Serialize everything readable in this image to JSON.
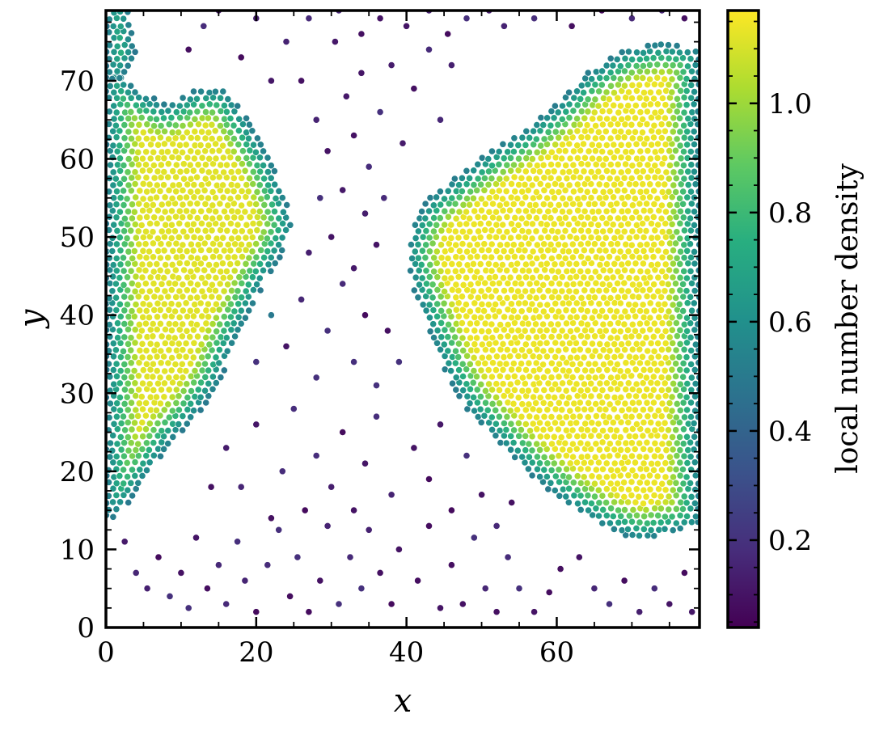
{
  "chart_data": {
    "type": "scatter",
    "title": "",
    "xlabel": "x",
    "ylabel": "y",
    "xlim": [
      0,
      79
    ],
    "ylim": [
      0,
      79
    ],
    "x_ticks": [
      0,
      20,
      40,
      60
    ],
    "x_tick_labels": [
      "0",
      "20",
      "40",
      "60"
    ],
    "y_ticks": [
      0,
      10,
      20,
      30,
      40,
      50,
      60,
      70
    ],
    "y_tick_labels": [
      "0",
      "10",
      "20",
      "30",
      "40",
      "50",
      "60",
      "70"
    ],
    "grid": false,
    "colormap": "viridis",
    "colorbar": {
      "label": "local number density",
      "range": [
        0.04,
        1.17
      ],
      "ticks": [
        0.2,
        0.4,
        0.6,
        0.8,
        1.0
      ],
      "tick_labels": [
        "0.2",
        "0.4",
        "0.6",
        "0.8",
        "1.0"
      ]
    },
    "regions": [
      {
        "name": "left dense cluster",
        "density": 1.12,
        "boundary": [
          [
            0,
            73
          ],
          [
            4,
            69
          ],
          [
            8,
            67
          ],
          [
            12,
            69
          ],
          [
            16,
            69
          ],
          [
            19,
            65
          ],
          [
            22,
            60
          ],
          [
            24,
            55
          ],
          [
            25,
            51
          ],
          [
            23,
            47
          ],
          [
            21,
            44
          ],
          [
            19,
            40
          ],
          [
            17,
            36
          ],
          [
            15,
            31
          ],
          [
            12,
            27
          ],
          [
            9,
            24
          ],
          [
            6,
            20
          ],
          [
            3,
            16
          ],
          [
            0,
            13
          ]
        ]
      },
      {
        "name": "right dense cluster",
        "density": 1.14,
        "boundary": [
          [
            79,
            74
          ],
          [
            74,
            75
          ],
          [
            69,
            74
          ],
          [
            64,
            71
          ],
          [
            60,
            67
          ],
          [
            56,
            64
          ],
          [
            51,
            61
          ],
          [
            47,
            58
          ],
          [
            43,
            55
          ],
          [
            41,
            52
          ],
          [
            40,
            48
          ],
          [
            41,
            43
          ],
          [
            43,
            38
          ],
          [
            45,
            33
          ],
          [
            48,
            28
          ],
          [
            52,
            24
          ],
          [
            56,
            20
          ],
          [
            61,
            16
          ],
          [
            66,
            13
          ],
          [
            71,
            11
          ],
          [
            75,
            12
          ],
          [
            79,
            13
          ]
        ]
      },
      {
        "name": "left edge crossing",
        "density": 1.1,
        "boundary": [
          [
            0,
            80
          ],
          [
            3,
            80
          ],
          [
            4,
            73
          ],
          [
            2,
            70
          ],
          [
            0,
            70
          ]
        ]
      }
    ],
    "sparse_points": [
      [
        2.5,
        11
      ],
      [
        4,
        7
      ],
      [
        5.5,
        5
      ],
      [
        7,
        9
      ],
      [
        8.5,
        4
      ],
      [
        10,
        7
      ],
      [
        11,
        2.5
      ],
      [
        12,
        11.5
      ],
      [
        13.5,
        5
      ],
      [
        15,
        8
      ],
      [
        16,
        3
      ],
      [
        17.5,
        11
      ],
      [
        18.5,
        6
      ],
      [
        20,
        2
      ],
      [
        21.5,
        8
      ],
      [
        23,
        12.5
      ],
      [
        24.5,
        4
      ],
      [
        25.5,
        9
      ],
      [
        27,
        2
      ],
      [
        28.5,
        6
      ],
      [
        29.5,
        13
      ],
      [
        31,
        3
      ],
      [
        32.5,
        9
      ],
      [
        34,
        5
      ],
      [
        35,
        12.5
      ],
      [
        36.5,
        7
      ],
      [
        38,
        3
      ],
      [
        39,
        10
      ],
      [
        41.5,
        6
      ],
      [
        43,
        13
      ],
      [
        44.5,
        2.5
      ],
      [
        46,
        8
      ],
      [
        47.5,
        3
      ],
      [
        49,
        11.5
      ],
      [
        50.5,
        5
      ],
      [
        52,
        2
      ],
      [
        53.5,
        9
      ],
      [
        55,
        5
      ],
      [
        57,
        2
      ],
      [
        59,
        4.5
      ],
      [
        60.5,
        7.5
      ],
      [
        63,
        9
      ],
      [
        65,
        5
      ],
      [
        67,
        3
      ],
      [
        69,
        6
      ],
      [
        71,
        2
      ],
      [
        73,
        5
      ],
      [
        75,
        3
      ],
      [
        77,
        7
      ],
      [
        78,
        2
      ],
      [
        14,
        18
      ],
      [
        16,
        23
      ],
      [
        18,
        18
      ],
      [
        20,
        26
      ],
      [
        22,
        14
      ],
      [
        23.5,
        20
      ],
      [
        25,
        28
      ],
      [
        26.5,
        15
      ],
      [
        28,
        22
      ],
      [
        30,
        18
      ],
      [
        31.5,
        25
      ],
      [
        33,
        15
      ],
      [
        34.5,
        21
      ],
      [
        36,
        27
      ],
      [
        38,
        17
      ],
      [
        41,
        23
      ],
      [
        43,
        19
      ],
      [
        44.5,
        26
      ],
      [
        46,
        15
      ],
      [
        48,
        22
      ],
      [
        50,
        17
      ],
      [
        52,
        13
      ],
      [
        54,
        16
      ],
      [
        20,
        34
      ],
      [
        22,
        40
      ],
      [
        24,
        36
      ],
      [
        26,
        42
      ],
      [
        28,
        32
      ],
      [
        29.5,
        38
      ],
      [
        31.5,
        44
      ],
      [
        33,
        34
      ],
      [
        34.5,
        40
      ],
      [
        36,
        31
      ],
      [
        37.5,
        38
      ],
      [
        39,
        34
      ],
      [
        27,
        48
      ],
      [
        28.5,
        55
      ],
      [
        30,
        50
      ],
      [
        31.5,
        56
      ],
      [
        33,
        46
      ],
      [
        34.5,
        53
      ],
      [
        36,
        49
      ],
      [
        37,
        55
      ],
      [
        26,
        70
      ],
      [
        28,
        65
      ],
      [
        29.5,
        61
      ],
      [
        30.5,
        75
      ],
      [
        32,
        68
      ],
      [
        33,
        63
      ],
      [
        34,
        71
      ],
      [
        35,
        59
      ],
      [
        36.5,
        66
      ],
      [
        38,
        72
      ],
      [
        39.5,
        62
      ],
      [
        41,
        69
      ],
      [
        43,
        74
      ],
      [
        44.5,
        65
      ],
      [
        46,
        72
      ],
      [
        11,
        74
      ],
      [
        13,
        77
      ],
      [
        15,
        79
      ],
      [
        18,
        73
      ],
      [
        20,
        78
      ],
      [
        22,
        70
      ],
      [
        24,
        75
      ],
      [
        27,
        78
      ],
      [
        31,
        79
      ],
      [
        34,
        76
      ],
      [
        36.5,
        78
      ],
      [
        40,
        77
      ],
      [
        43,
        79
      ],
      [
        45.5,
        76
      ],
      [
        48,
        78
      ],
      [
        51,
        79
      ],
      [
        53,
        77
      ],
      [
        57,
        78
      ],
      [
        62,
        77
      ],
      [
        66,
        79
      ],
      [
        70,
        78
      ],
      [
        74,
        79
      ],
      [
        77,
        78
      ]
    ]
  }
}
